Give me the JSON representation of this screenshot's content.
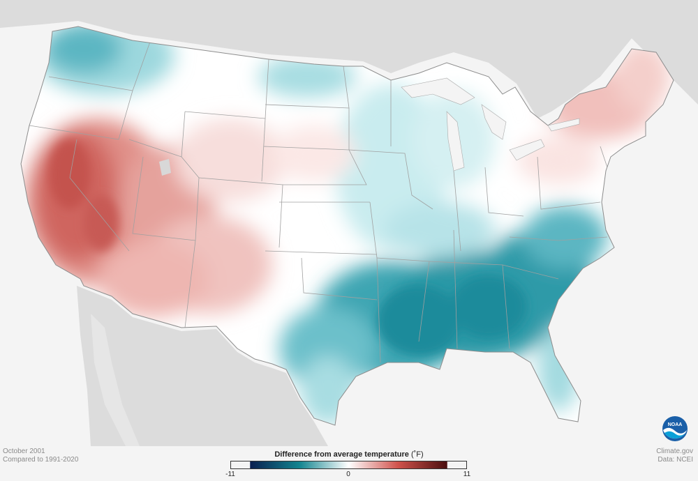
{
  "map": {
    "period": "October 2001",
    "baseline": "Compared to 1991-2020",
    "source_site": "Climate.gov",
    "source_data": "Data: NCEI",
    "logo_text": "NOAA",
    "logo_icon": "noaa-logo-icon"
  },
  "legend": {
    "title": "Difference from average temperature",
    "unit": "(˚F)",
    "min_label": "-11",
    "mid_label": "0",
    "max_label": "11",
    "min": -11,
    "max": 11,
    "colors": {
      "cold_extreme": "#0b1f4f",
      "cold": "#12848f",
      "neutral": "#ffffff",
      "warm": "#d0524c",
      "warm_extreme": "#4a0e0e"
    }
  },
  "colors": {
    "land_outside": "#dcdcdc",
    "ocean": "#f4f4f4",
    "borders": "#9a9a9a"
  }
}
